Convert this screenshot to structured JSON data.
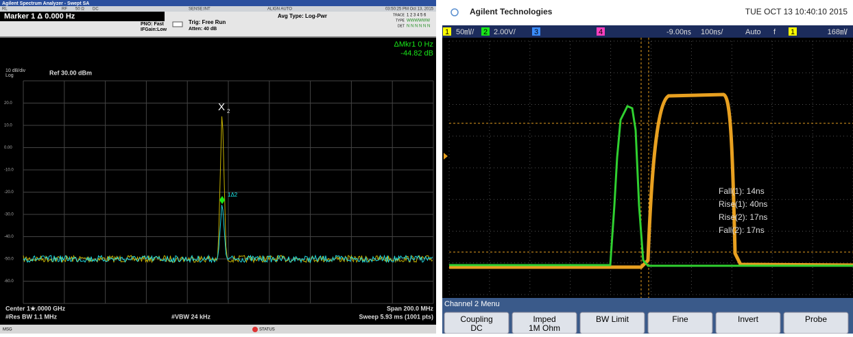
{
  "spectrum": {
    "title": "Agilent Spectrum Analyzer - Swept SA",
    "status": [
      "RL",
      "RF",
      "50 Ω",
      "DC",
      "SENSE:INT",
      "ALIGN AUTO",
      "03:50:25 PM Oct 13, 2015"
    ],
    "marker": "Marker 1 Δ 0.000 Hz",
    "pno": "PNO: Fast",
    "ifgain": "IFGain:Low",
    "trig": "Trig: Free Run",
    "atten": "Atten: 40 dB",
    "avg_type": "Avg Type: Log-Pwr",
    "trace_rows": [
      [
        "TRACE",
        "1 2 3 4 5 6"
      ],
      [
        "TYPE",
        "WWWWWW"
      ],
      [
        "DET",
        "N N N N N N"
      ]
    ],
    "delta_marker": "ΔMkr1 0 Hz",
    "delta_value": "-44.82 dB",
    "scale": "10 dB/div",
    "log": "Log",
    "ref": "Ref 30.00 dBm",
    "y_labels": [
      "20.0",
      "10.0",
      "0.00",
      "-10.0",
      "-20.0",
      "-30.0",
      "-40.0",
      "-50.0",
      "-60.0"
    ],
    "marker_x": "X",
    "marker_x_sub": "2",
    "marker_delta": "1Δ2",
    "center": "Center 1★.0000 GHz",
    "res_bw": "#Res BW 1.1 MHz",
    "vbw": "#VBW 24 kHz",
    "span": "Span 200.0 MHz",
    "sweep": "Sweep  5.93 ms (1001 pts)",
    "msg": "MSG",
    "status_btn": "STATUS"
  },
  "scope": {
    "brand": "Agilent Technologies",
    "datetime": "TUE OCT 13 10:40:10 2015",
    "top_bar": [
      "1",
      "50㎷/",
      "2",
      "2.00V/",
      "3",
      "4",
      "-9.00㎱",
      "100㎱/",
      "Auto",
      "f",
      "1",
      "168㎷"
    ],
    "measurements": [
      "Fall(1): 14ns",
      "Rise(1): 40ns",
      "Rise(2): 17ns",
      "Fall(2): 17ns"
    ],
    "menu_title": "Channel 2 Menu",
    "softkeys": [
      [
        "Coupling",
        "DC"
      ],
      [
        "Imped",
        "1M Ohm"
      ],
      [
        "BW Limit",
        ""
      ],
      [
        "Fine",
        ""
      ],
      [
        "Invert",
        ""
      ],
      [
        "Probe",
        ""
      ]
    ]
  }
}
